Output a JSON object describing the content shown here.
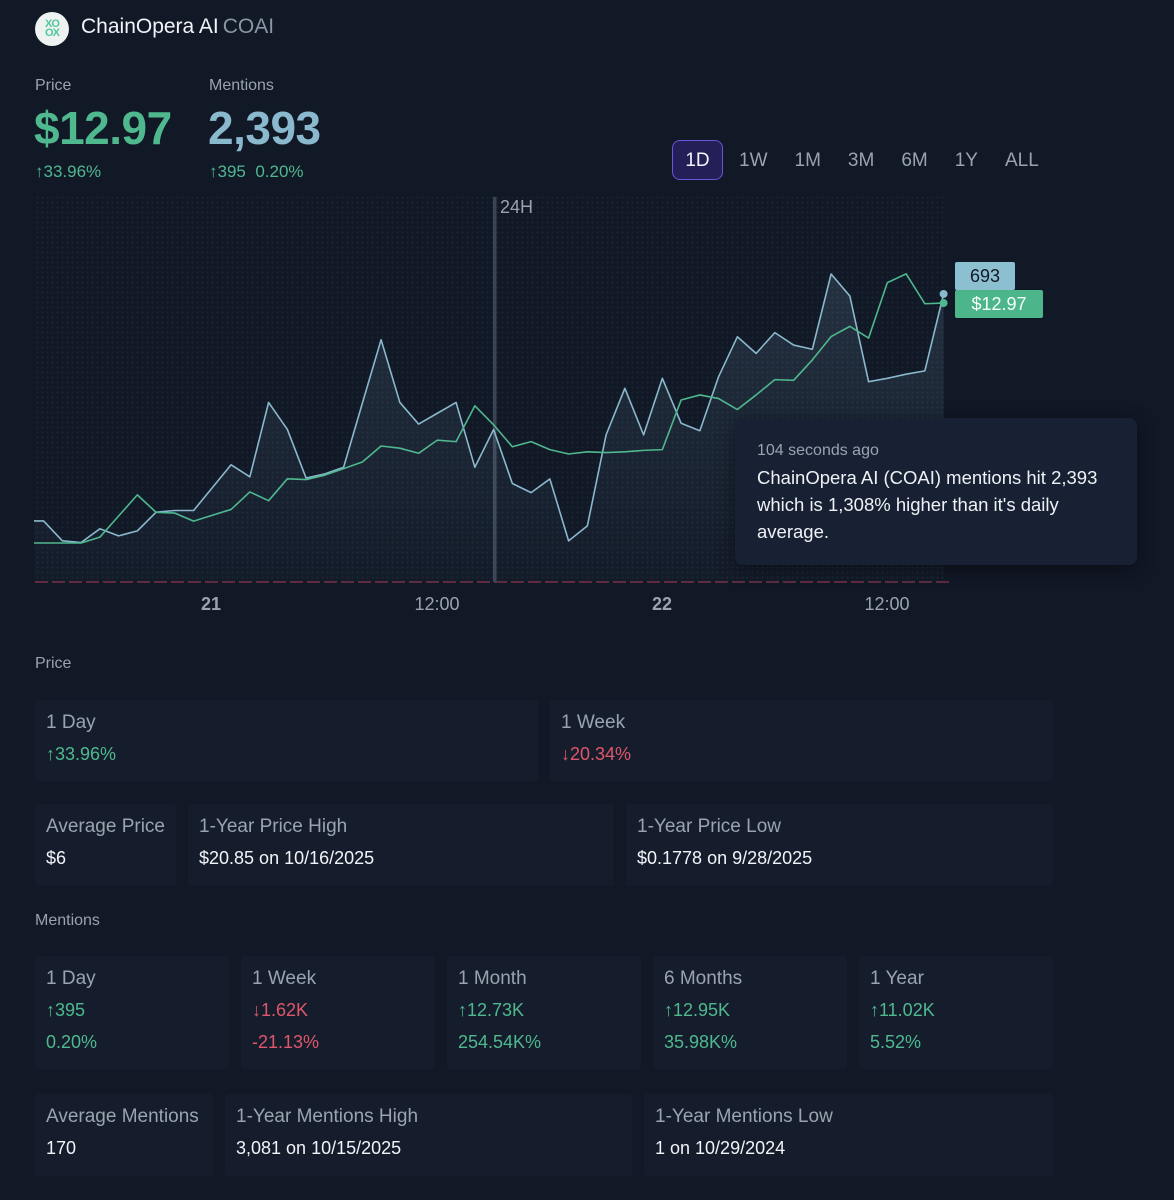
{
  "header": {
    "name": "ChainOpera AI",
    "ticker": "COAI",
    "logo_text": "XO OX"
  },
  "summary": {
    "price_label": "Price",
    "price_value": "$12.97",
    "price_change": "↑33.96%",
    "mentions_label": "Mentions",
    "mentions_value": "2,393",
    "mentions_change": "↑395",
    "mentions_change_pct": "0.20%"
  },
  "ranges": [
    {
      "label": "1D",
      "active": true
    },
    {
      "label": "1W"
    },
    {
      "label": "1M"
    },
    {
      "label": "3M"
    },
    {
      "label": "6M"
    },
    {
      "label": "1Y"
    },
    {
      "label": "ALL"
    }
  ],
  "chart_data": {
    "type": "line",
    "marker_label": "24H",
    "x_ticks": [
      "21",
      "12:00",
      "22",
      "12:00"
    ],
    "x": [
      "20 15:00",
      "20 16:00",
      "20 17:00",
      "20 18:00",
      "20 19:00",
      "20 20:00",
      "20 21:00",
      "20 22:00",
      "20 23:00",
      "21 00:00",
      "21 01:00",
      "21 02:00",
      "21 03:00",
      "21 04:00",
      "21 05:00",
      "21 06:00",
      "21 07:00",
      "21 08:00",
      "21 09:00",
      "21 10:00",
      "21 11:00",
      "21 12:00",
      "21 13:00",
      "21 14:00",
      "21 15:00",
      "21 16:00",
      "21 17:00",
      "21 18:00",
      "21 19:00",
      "21 20:00",
      "21 21:00",
      "21 22:00",
      "21 23:00",
      "22 00:00",
      "22 01:00",
      "22 02:00",
      "22 03:00",
      "22 04:00",
      "22 05:00",
      "22 06:00",
      "22 07:00",
      "22 08:00",
      "22 09:00",
      "22 10:00",
      "22 11:00",
      "22 12:00",
      "22 13:00",
      "22 14:00",
      "22 15:00"
    ],
    "series": [
      {
        "key": "mentions",
        "color": "#8ab8cc",
        "last_label": "693",
        "values": [
          147,
          99,
          95,
          128,
          111,
          123,
          168,
          172,
          172,
          227,
          282,
          253,
          432,
          367,
          250,
          260,
          276,
          430,
          583,
          432,
          380,
          406,
          432,
          276,
          367,
          237,
          215,
          248,
          99,
          135,
          354,
          466,
          354,
          490,
          382,
          364,
          494,
          590,
          550,
          600,
          570,
          560,
          741,
          688,
          482,
          490,
          500,
          508,
          693
        ]
      },
      {
        "key": "price",
        "color": "#4fb88f",
        "last_label": "$12.97",
        "values": [
          9.68,
          9.68,
          9.68,
          9.76,
          10.05,
          10.34,
          10.1,
          10.09,
          9.98,
          10.06,
          10.14,
          10.38,
          10.26,
          10.56,
          10.55,
          10.61,
          10.7,
          10.79,
          11.01,
          10.98,
          10.91,
          11.09,
          11.07,
          11.56,
          11.3,
          11.0,
          11.07,
          10.96,
          10.9,
          10.93,
          10.92,
          10.93,
          10.95,
          10.96,
          11.64,
          11.71,
          11.66,
          11.51,
          11.71,
          11.92,
          11.91,
          12.19,
          12.51,
          12.65,
          12.49,
          13.25,
          13.37,
          12.96,
          12.97
        ]
      }
    ],
    "grid": "dotted",
    "baseline_color": "#7a2f45"
  },
  "tooltip": {
    "time": "104 seconds ago",
    "message": "ChainOpera AI (COAI) mentions hit 2,393 which is 1,308% higher than it's daily average."
  },
  "price_section": {
    "label": "Price",
    "changes": [
      {
        "label": "1 Day",
        "value": "↑33.96%",
        "trend": "up"
      },
      {
        "label": "1 Week",
        "value": "↓20.34%",
        "trend": "down"
      }
    ],
    "stats": [
      {
        "label": "Average Price",
        "value": "$6"
      },
      {
        "label": "1-Year Price High",
        "value": "$20.85 on 10/16/2025"
      },
      {
        "label": "1-Year Price Low",
        "value": "$0.1778 on 9/28/2025"
      }
    ]
  },
  "mentions_section": {
    "label": "Mentions",
    "changes": [
      {
        "label": "1 Day",
        "value": "↑395",
        "pct": "0.20%",
        "trend": "up"
      },
      {
        "label": "1 Week",
        "value": "↓1.62K",
        "pct": "-21.13%",
        "trend": "down"
      },
      {
        "label": "1 Month",
        "value": "↑12.73K",
        "pct": "254.54K%",
        "trend": "up"
      },
      {
        "label": "6 Months",
        "value": "↑12.95K",
        "pct": "35.98K%",
        "trend": "up"
      },
      {
        "label": "1 Year",
        "value": "↑11.02K",
        "pct": "5.52%",
        "trend": "up"
      }
    ],
    "stats": [
      {
        "label": "Average Mentions",
        "value": "170"
      },
      {
        "label": "1-Year Mentions High",
        "value": "3,081 on 10/15/2025"
      },
      {
        "label": "1-Year Mentions Low",
        "value": "1 on 10/29/2024"
      }
    ]
  }
}
